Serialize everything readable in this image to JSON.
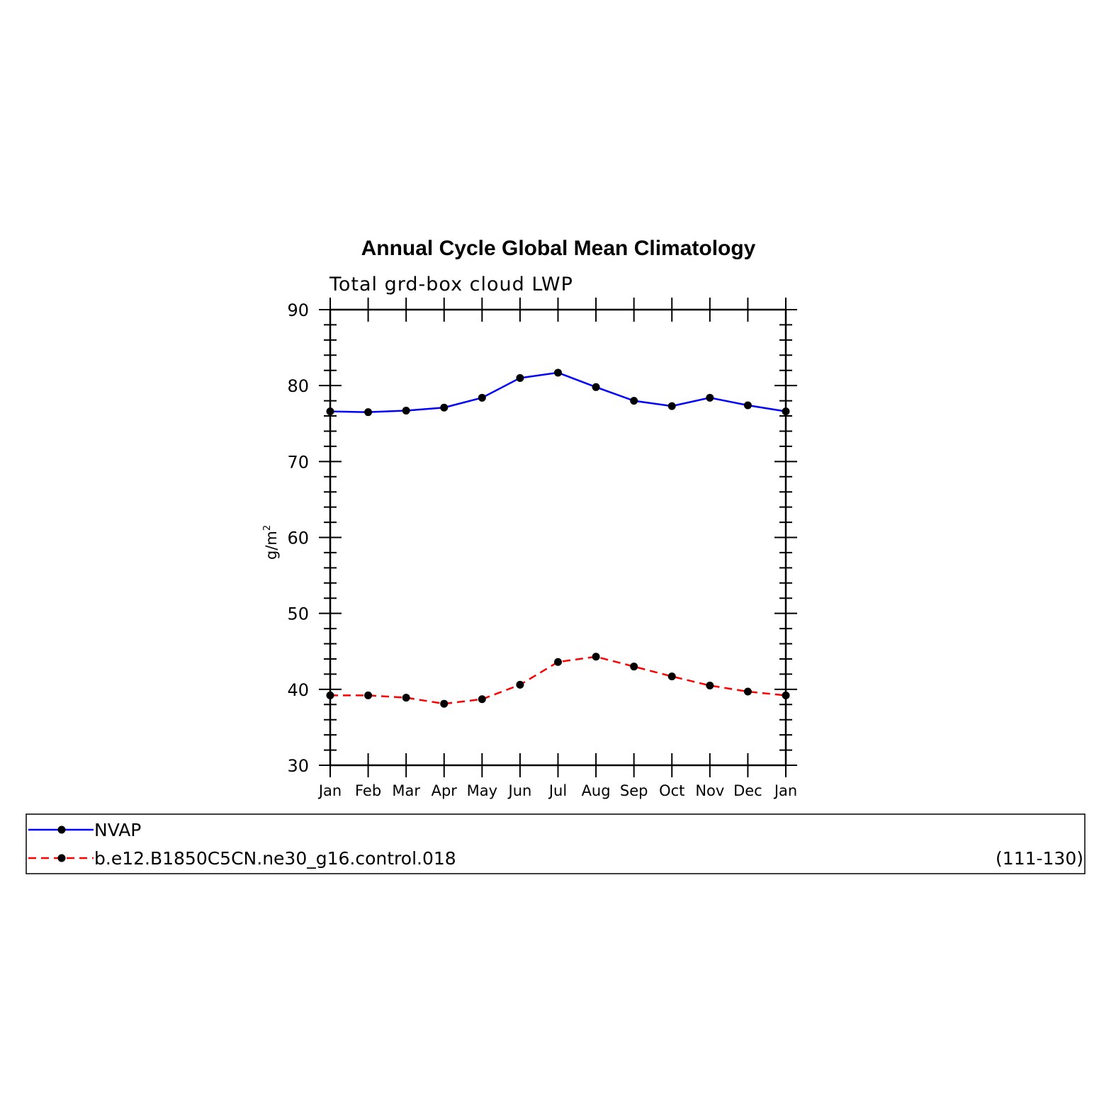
{
  "chart_data": {
    "type": "line",
    "title": "Annual Cycle Global Mean Climatology",
    "subtitle": "Total grd-box cloud LWP",
    "ylabel": "g/m",
    "ylabel_superscript": "2",
    "xlabel": "",
    "ylim": [
      30,
      90
    ],
    "yticks": [
      "30",
      "40",
      "50",
      "60",
      "70",
      "80",
      "90"
    ],
    "categories": [
      "Jan",
      "Feb",
      "Mar",
      "Apr",
      "May",
      "Jun",
      "Jul",
      "Aug",
      "Sep",
      "Oct",
      "Nov",
      "Dec",
      "Jan"
    ],
    "grid": false,
    "legend_position": "bottom",
    "series": [
      {
        "name": "NVAP",
        "color": "#0000ff",
        "style": "solid",
        "marker": "filled-circle",
        "values": [
          76.6,
          76.5,
          76.7,
          77.1,
          78.4,
          81.0,
          81.7,
          79.8,
          78.0,
          77.3,
          78.4,
          77.4,
          76.6
        ]
      },
      {
        "name": "b.e12.B1850C5CN.ne30_g16.control.018",
        "color": "#ff0000",
        "style": "dashed",
        "marker": "filled-circle",
        "values": [
          39.2,
          39.2,
          38.9,
          38.1,
          38.7,
          40.6,
          43.6,
          44.3,
          43.0,
          41.7,
          40.5,
          39.7,
          39.2
        ]
      }
    ],
    "legend_extra": "(111-130)"
  }
}
